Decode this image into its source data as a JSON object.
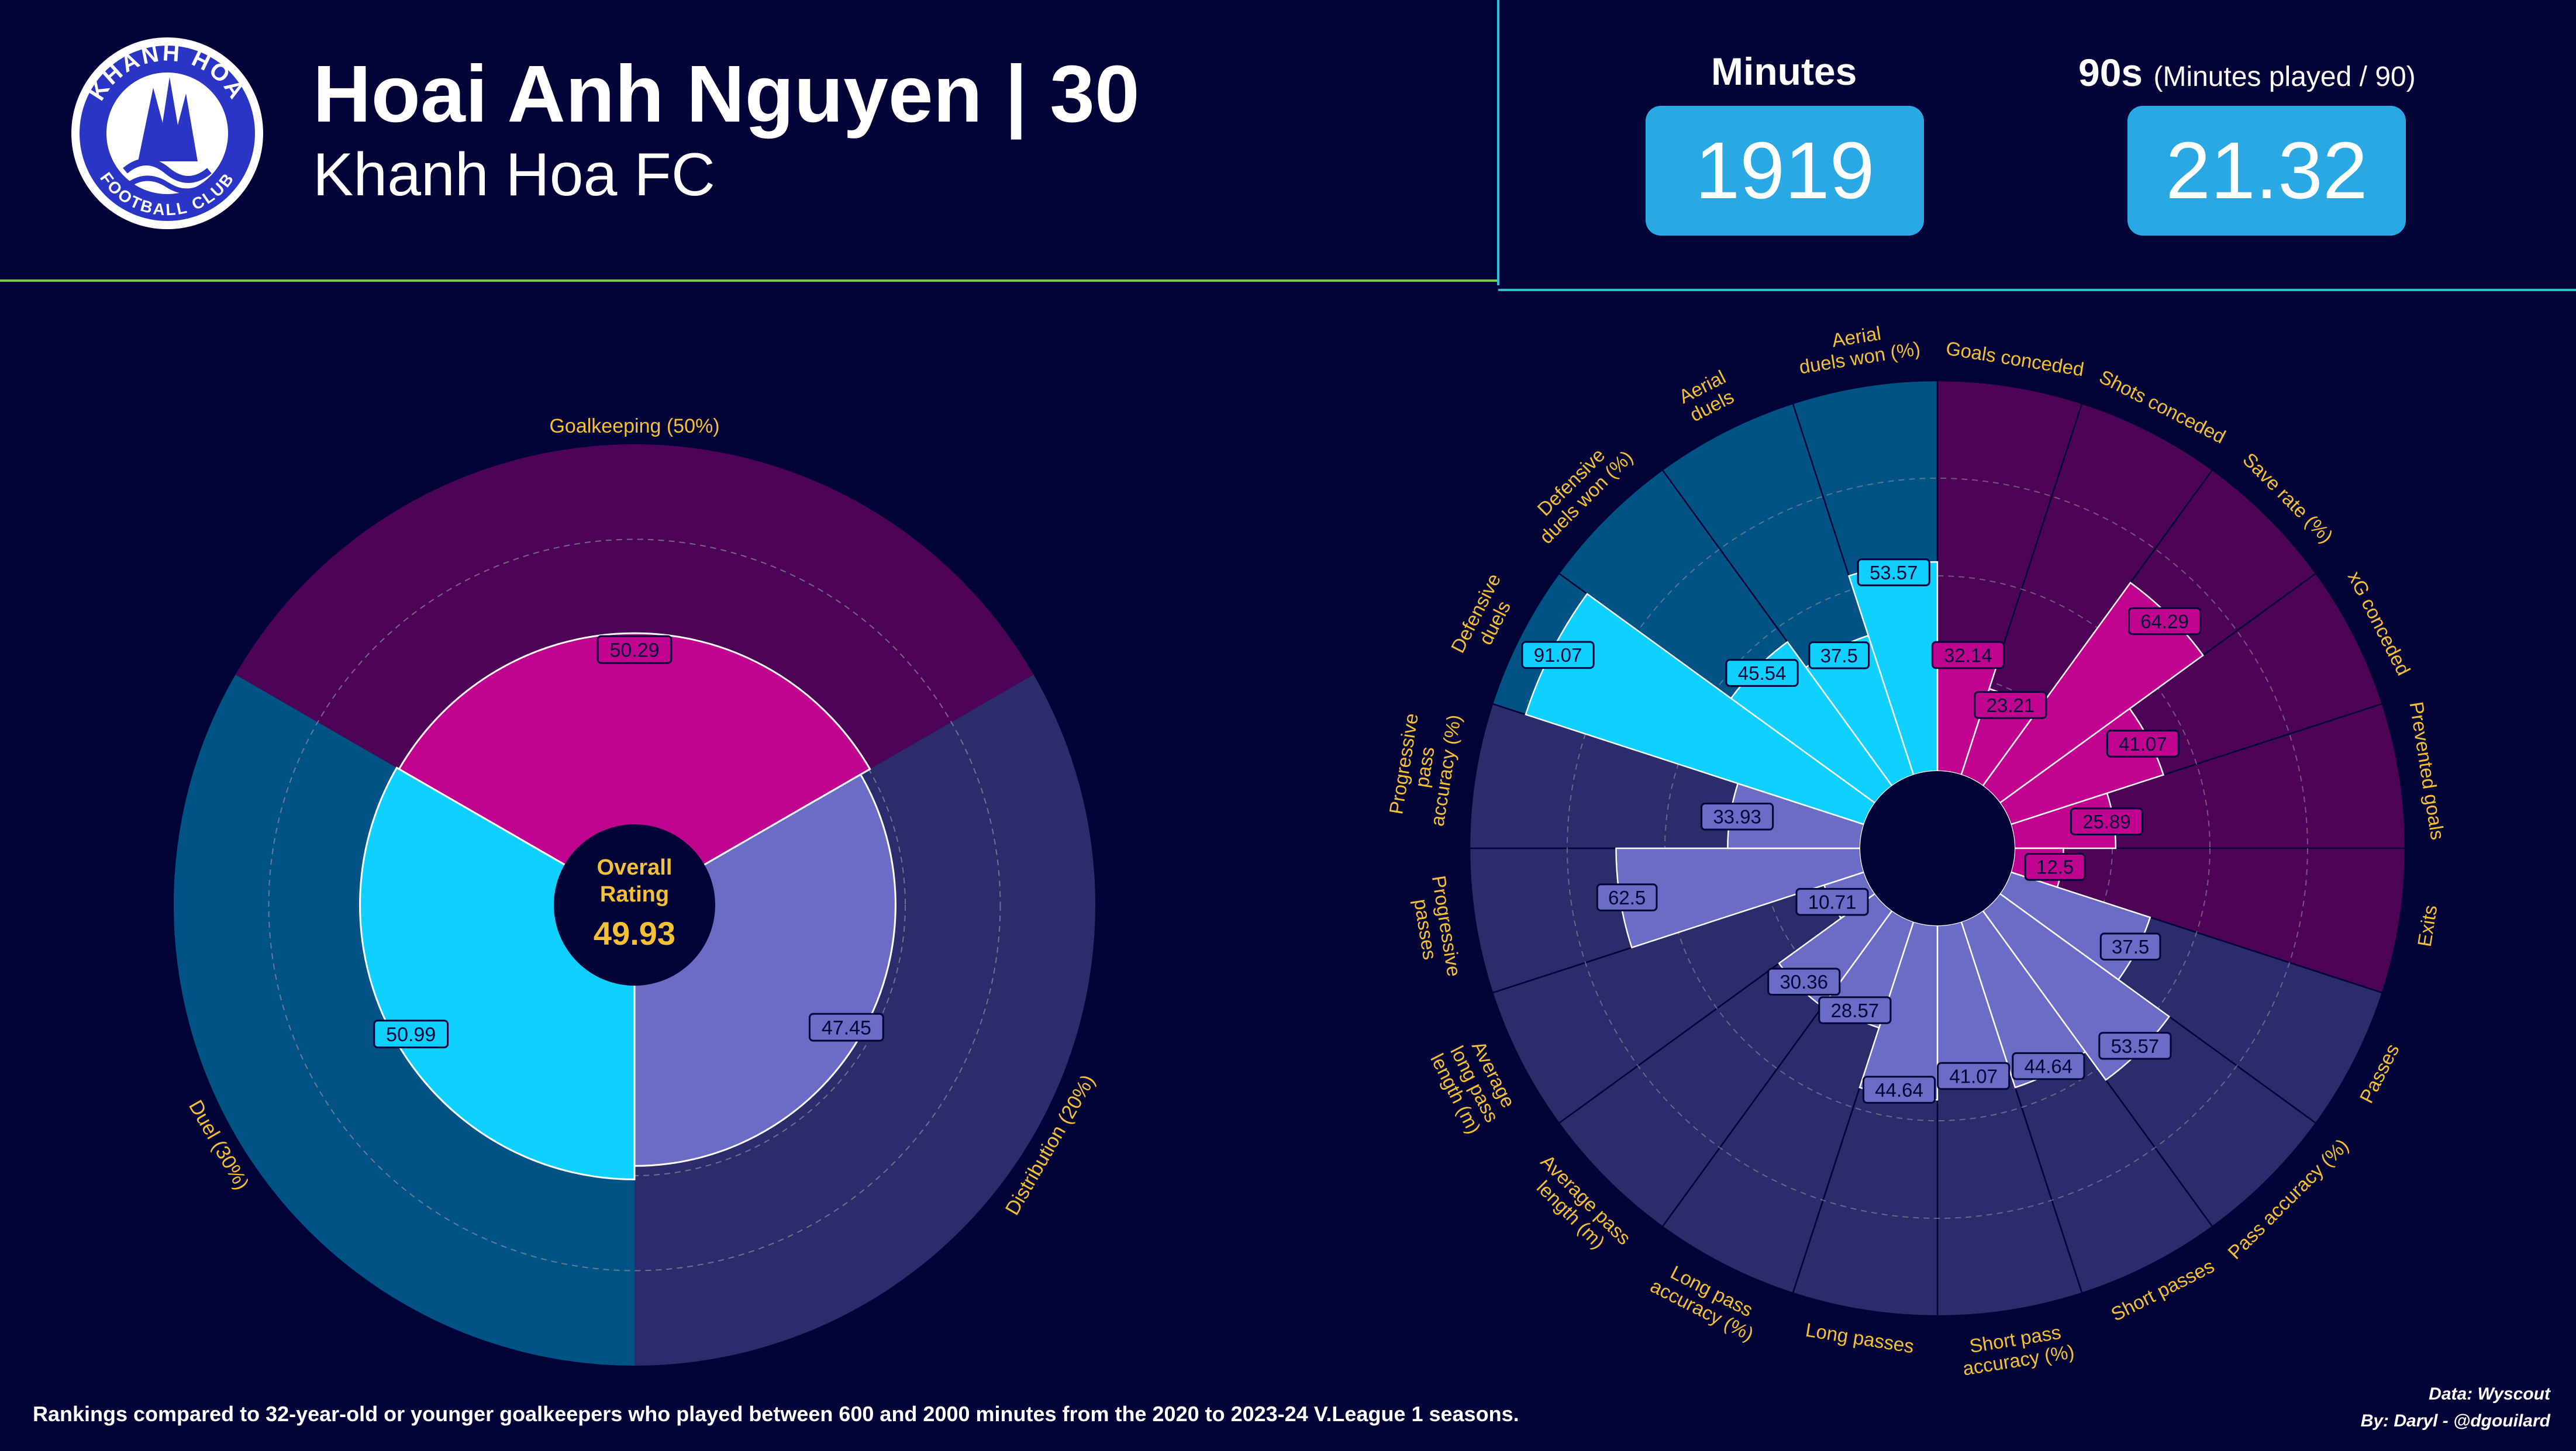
{
  "header": {
    "player_title": "Hoai Anh Nguyen | 30",
    "team": "Khanh Hoa FC",
    "logo": {
      "icon": "club-crest-icon",
      "top_text": "KHANH HOA",
      "bottom_text": "FOOTBALL CLUB"
    }
  },
  "stats": {
    "minutes_label": "Minutes",
    "minutes_value": "1919",
    "nineties_label": "90s",
    "nineties_sub": "(Minutes played / 90)",
    "nineties_value": "21.32"
  },
  "colors": {
    "background": "#020337",
    "goalkeeping_bg": "#4e0456",
    "goalkeeping_bar": "#c0048f",
    "duel_bg": "#025385",
    "duel_bar": "#10d0ff",
    "distribution_bg": "#2c2b6b",
    "distribution_bar": "#6b6cc6",
    "label_text": "#f5c034",
    "divider_left": "#6fcf4a",
    "divider_right": "#22c3d9"
  },
  "chart_data": [
    {
      "type": "pie",
      "variant": "category-polar",
      "center_label": "Overall\nRating",
      "center_value": "49.93",
      "rlim": [
        0,
        100
      ],
      "grid": true,
      "categories": [
        {
          "label": "Goalkeeping (50%)",
          "value": 50.29,
          "weight": 50
        },
        {
          "label": "Distribution (20%)",
          "value": 47.45,
          "weight": 20
        },
        {
          "label": "Duel (30%)",
          "value": 50.99,
          "weight": 30
        }
      ]
    },
    {
      "type": "pie",
      "variant": "polar-bar",
      "rlim": [
        0,
        100
      ],
      "grid": true,
      "groups": [
        "goalkeeping",
        "distribution",
        "duel"
      ],
      "metrics": [
        {
          "label": "Goals conceded",
          "value": 32.14,
          "group": "goalkeeping"
        },
        {
          "label": "Shots conceded",
          "value": 23.21,
          "group": "goalkeeping"
        },
        {
          "label": "Save rate (%)",
          "value": 64.29,
          "group": "goalkeeping"
        },
        {
          "label": "xG conceded",
          "value": 41.07,
          "group": "goalkeeping"
        },
        {
          "label": "Prevented goals",
          "value": 25.89,
          "group": "goalkeeping"
        },
        {
          "label": "Exits",
          "value": 12.5,
          "group": "goalkeeping"
        },
        {
          "label": "Passes",
          "value": 37.5,
          "group": "distribution"
        },
        {
          "label": "Pass accuracy (%)",
          "value": 53.57,
          "group": "distribution"
        },
        {
          "label": "Short passes",
          "value": 44.64,
          "group": "distribution"
        },
        {
          "label": "Short pass\naccuracy (%)",
          "value": 41.07,
          "group": "distribution"
        },
        {
          "label": "Long passes",
          "value": 44.64,
          "group": "distribution"
        },
        {
          "label": "Long pass\naccuracy (%)",
          "value": 28.57,
          "group": "distribution"
        },
        {
          "label": "Average pass\nlength (m)",
          "value": 30.36,
          "group": "distribution"
        },
        {
          "label": "Average\nlong pass\nlength (m)",
          "value": 10.71,
          "group": "distribution"
        },
        {
          "label": "Progressive\npasses",
          "value": 62.5,
          "group": "distribution"
        },
        {
          "label": "Progressive\npass\naccuracy (%)",
          "value": 33.93,
          "group": "distribution"
        },
        {
          "label": "Defensive\nduels",
          "value": 91.07,
          "group": "duel"
        },
        {
          "label": "Defensive\nduels won (%)",
          "value": 45.54,
          "group": "duel"
        },
        {
          "label": "Aerial\nduels",
          "value": 37.5,
          "group": "duel"
        },
        {
          "label": "Aerial\nduels won (%)",
          "value": 53.57,
          "group": "duel"
        }
      ]
    }
  ],
  "footer": {
    "note": "Rankings compared to 32-year-old or younger goalkeepers who played between 600 and 2000 minutes from the 2020 to 2023-24 V.League 1 seasons.",
    "data_source": "Data: Wyscout",
    "author": "By: Daryl - @dgouilard"
  }
}
